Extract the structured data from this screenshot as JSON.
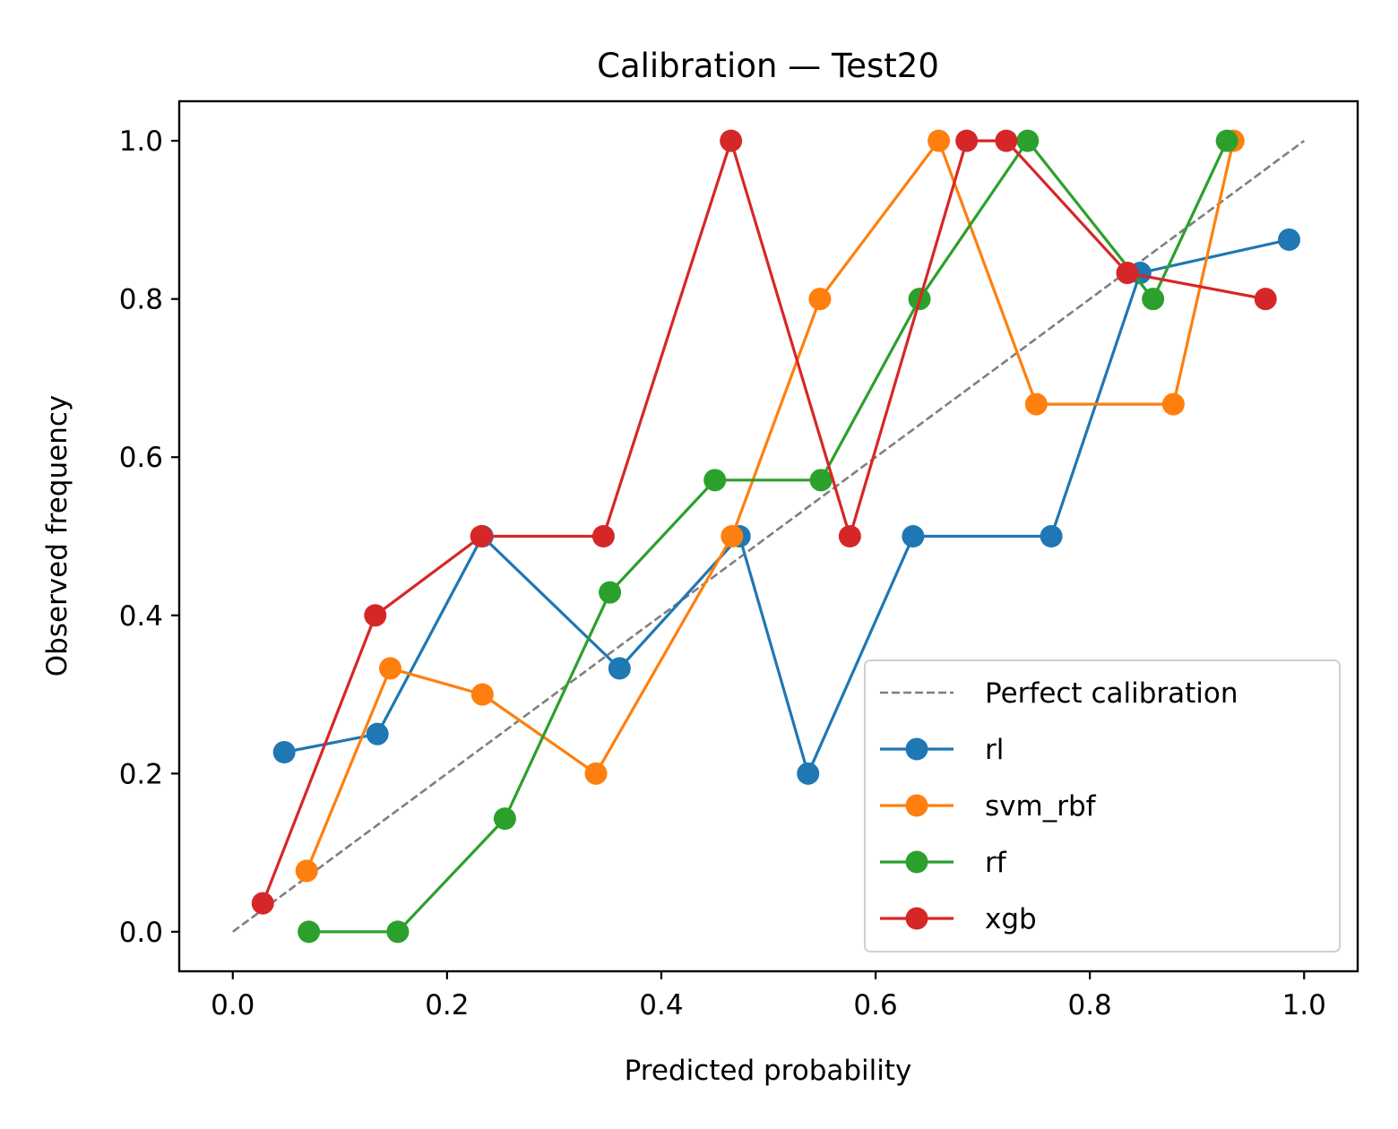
{
  "chart_data": {
    "type": "line",
    "title": "Calibration — Test20",
    "xlabel": "Predicted probability",
    "ylabel": "Observed frequency",
    "xlim": [
      -0.05,
      1.05
    ],
    "ylim": [
      -0.05,
      1.05
    ],
    "xticks": [
      0.0,
      0.2,
      0.4,
      0.6,
      0.8,
      1.0
    ],
    "xtick_labels": [
      "0.0",
      "0.2",
      "0.4",
      "0.6",
      "0.8",
      "1.0"
    ],
    "yticks": [
      0.0,
      0.2,
      0.4,
      0.6,
      0.8,
      1.0
    ],
    "ytick_labels": [
      "0.0",
      "0.2",
      "0.4",
      "0.6",
      "0.8",
      "1.0"
    ],
    "grid": false,
    "legend_position": "lower-right",
    "reference_line": {
      "name": "Perfect calibration",
      "x": [
        0,
        1
      ],
      "y": [
        0,
        1
      ],
      "color": "#7f7f7f",
      "style": "dashed"
    },
    "series": [
      {
        "name": "rl",
        "color": "#1f77b4",
        "x": [
          0.048,
          0.135,
          0.233,
          0.361,
          0.473,
          0.537,
          0.635,
          0.764,
          0.847,
          0.986
        ],
        "y": [
          0.227,
          0.25,
          0.5,
          0.333,
          0.5,
          0.2,
          0.5,
          0.5,
          0.833,
          0.875
        ]
      },
      {
        "name": "svm_rbf",
        "color": "#ff7f0e",
        "x": [
          0.069,
          0.147,
          0.233,
          0.339,
          0.466,
          0.548,
          0.659,
          0.75,
          0.878,
          0.934
        ],
        "y": [
          0.077,
          0.333,
          0.3,
          0.2,
          0.5,
          0.8,
          1.0,
          0.667,
          0.667,
          1.0
        ]
      },
      {
        "name": "rf",
        "color": "#2ca02c",
        "x": [
          0.071,
          0.154,
          0.254,
          0.352,
          0.45,
          0.549,
          0.641,
          0.742,
          0.859,
          0.928
        ],
        "y": [
          0.0,
          0.0,
          0.143,
          0.429,
          0.571,
          0.571,
          0.8,
          1.0,
          0.8,
          1.0
        ]
      },
      {
        "name": "xgb",
        "color": "#d62728",
        "x": [
          0.028,
          0.133,
          0.232,
          0.346,
          0.465,
          0.576,
          0.685,
          0.722,
          0.835,
          0.964
        ],
        "y": [
          0.036,
          0.4,
          0.5,
          0.5,
          1.0,
          0.5,
          1.0,
          1.0,
          0.833,
          0.8
        ]
      }
    ]
  }
}
